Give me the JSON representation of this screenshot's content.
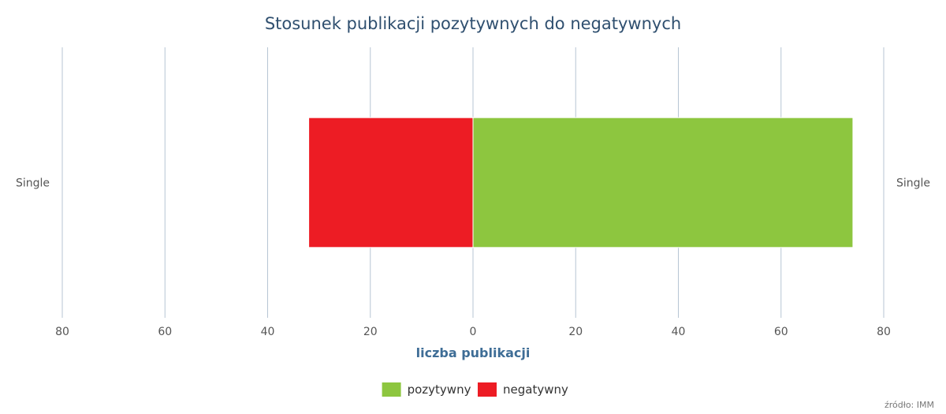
{
  "chart_data": {
    "type": "bar",
    "orientation": "horizontal",
    "stacking": "diverging",
    "title": "Stosunek publikacji pozytywnych do negatywnych",
    "xlabel": "liczba publikacji",
    "categories": [
      "Single"
    ],
    "xlim": [
      -80,
      80
    ],
    "ticks": [
      {
        "value": -80,
        "label": "80"
      },
      {
        "value": -60,
        "label": "60"
      },
      {
        "value": -40,
        "label": "40"
      },
      {
        "value": -20,
        "label": "20"
      },
      {
        "value": 0,
        "label": "0"
      },
      {
        "value": 20,
        "label": "20"
      },
      {
        "value": 40,
        "label": "40"
      },
      {
        "value": 60,
        "label": "60"
      },
      {
        "value": 80,
        "label": "80"
      }
    ],
    "series": [
      {
        "name": "pozytywny",
        "values": [
          74
        ],
        "color": "#8dc63f"
      },
      {
        "name": "negatywny",
        "values": [
          -32
        ],
        "color": "#ed1c24"
      }
    ],
    "grid": true,
    "legend_position": "bottom-center",
    "source": "źródło: IMM"
  }
}
